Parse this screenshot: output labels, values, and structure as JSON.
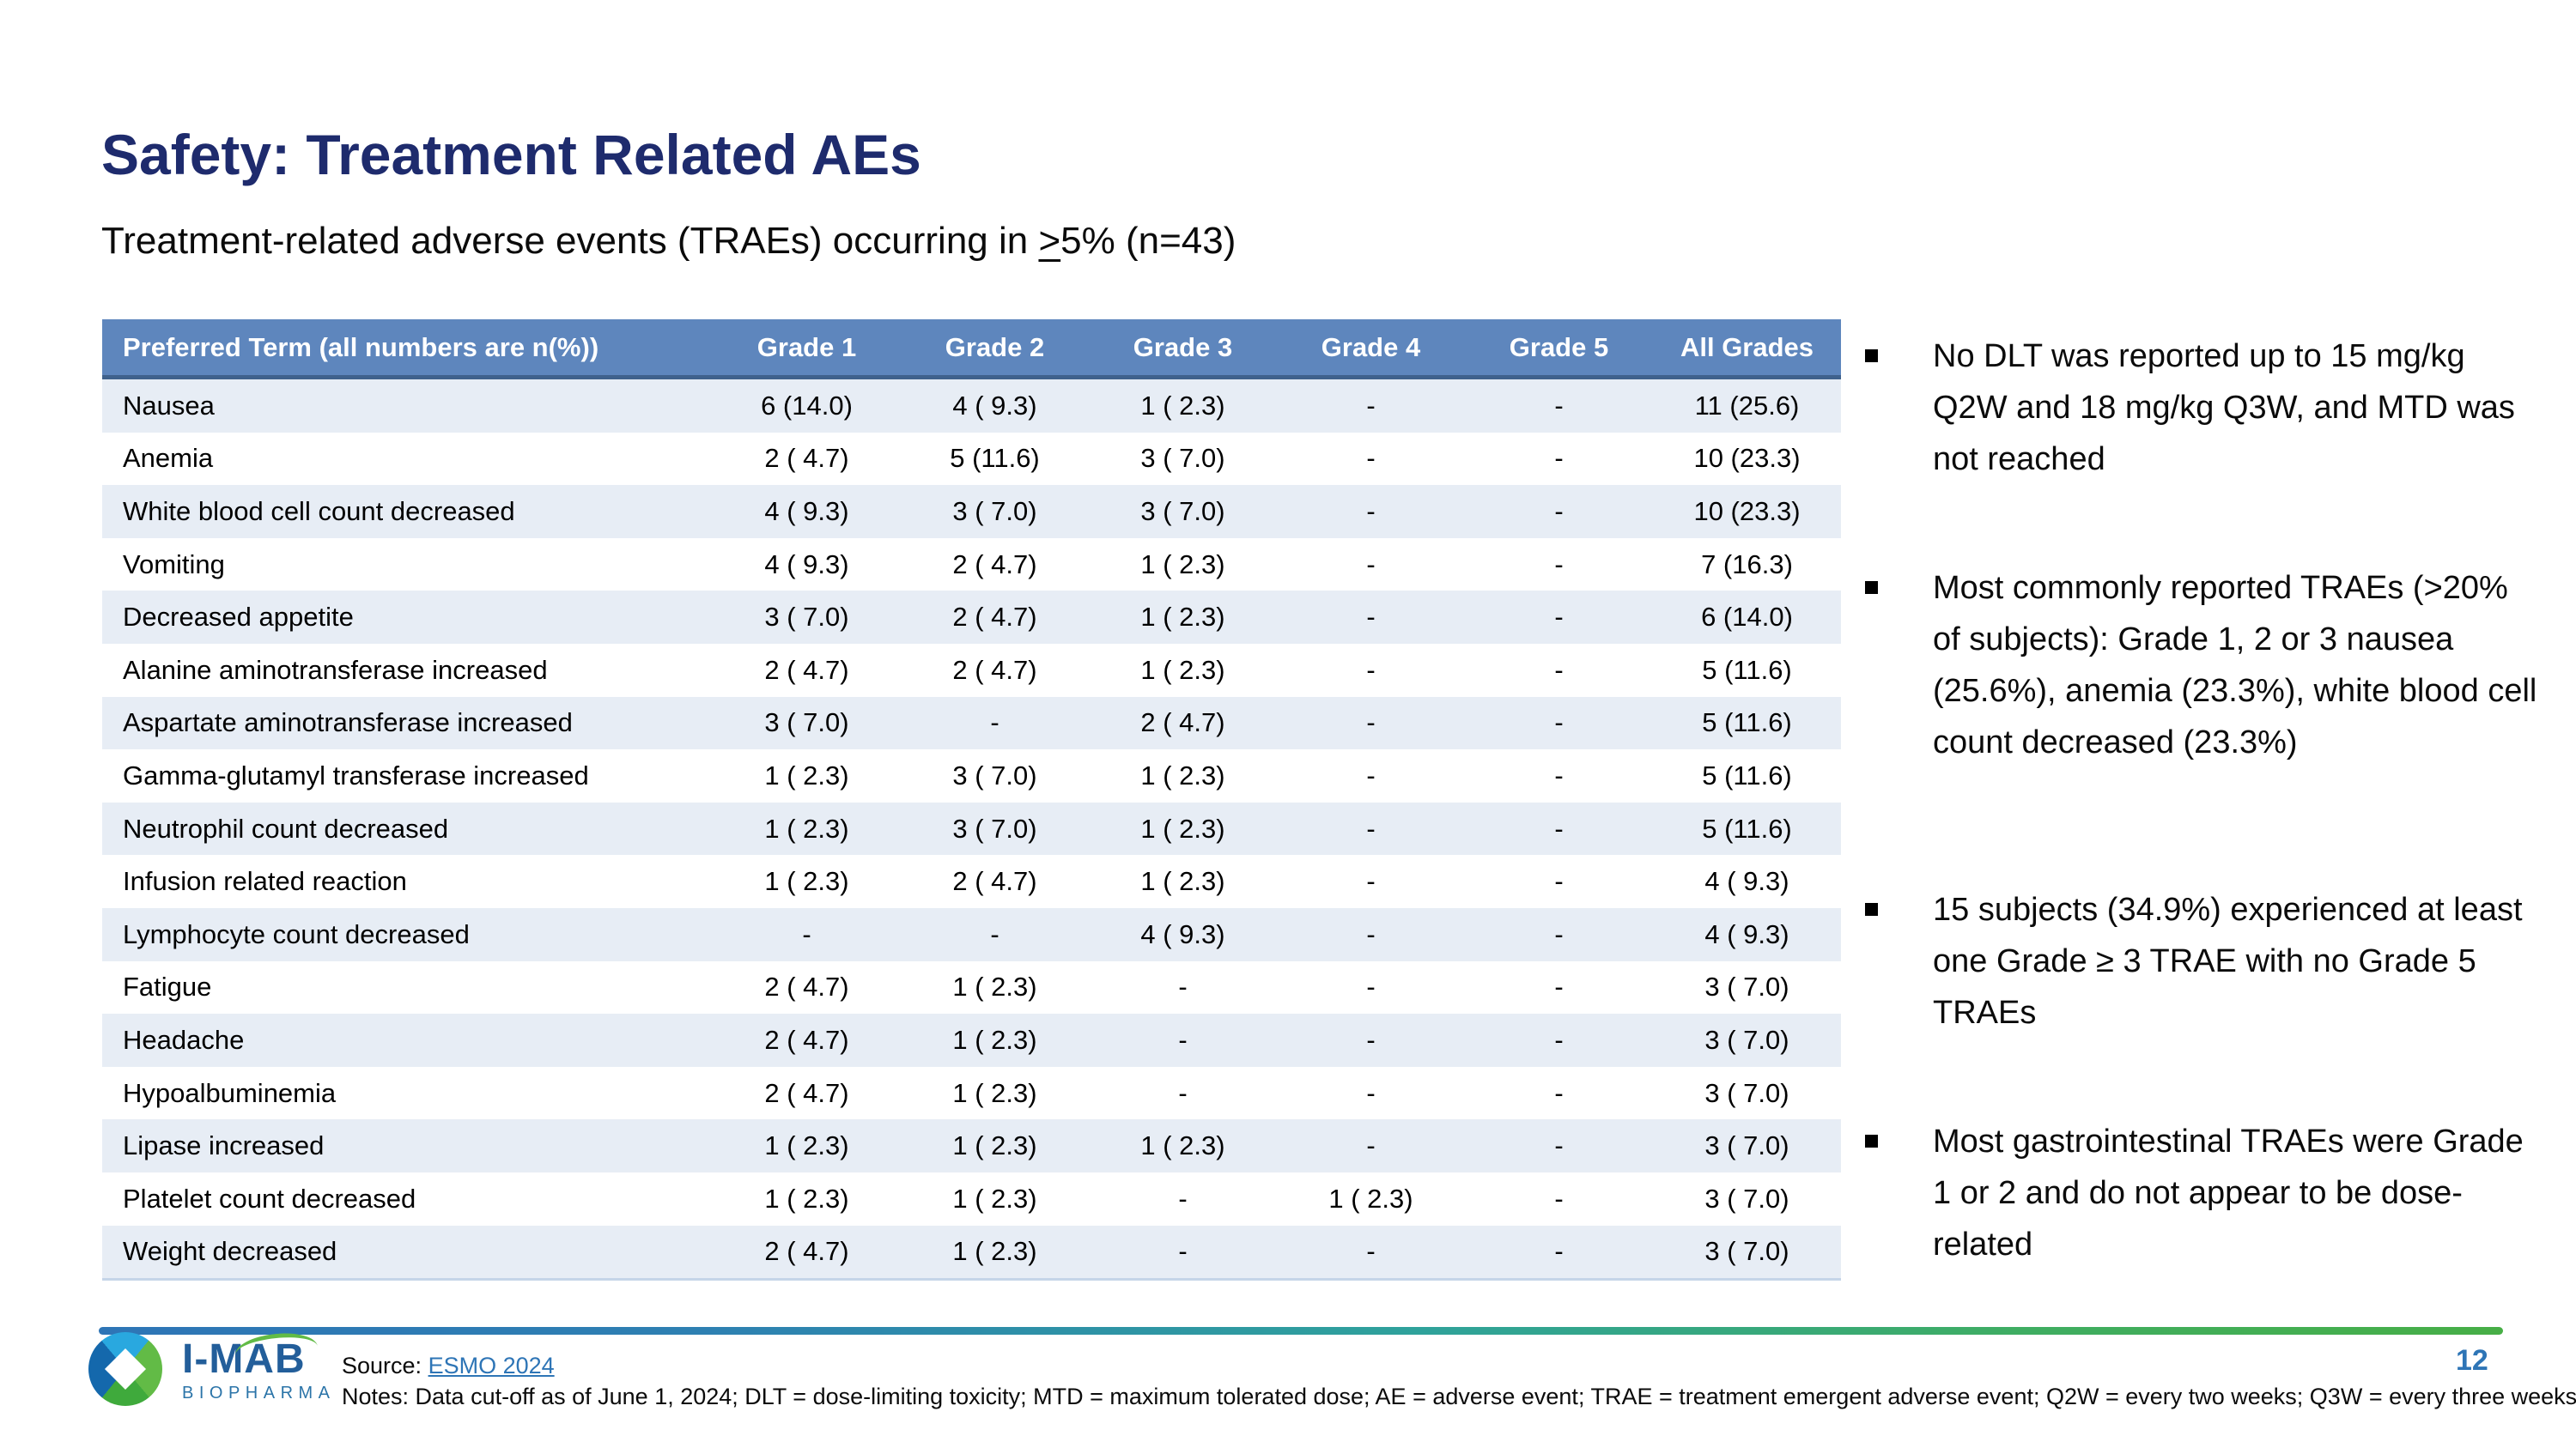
{
  "slide": {
    "title": "Safety: Treatment Related AEs",
    "subtitle_pre": "Treatment-related adverse events (TRAEs) occurring in ",
    "subtitle_geq": ">",
    "subtitle_post": "5% (n=43)"
  },
  "table": {
    "headers": [
      "Preferred Term (all numbers are n(%))",
      "Grade 1",
      "Grade 2",
      "Grade 3",
      "Grade 4",
      "Grade 5",
      "All Grades"
    ],
    "rows": [
      [
        "Nausea",
        "6 (14.0)",
        "4 ( 9.3)",
        "1 ( 2.3)",
        "-",
        "-",
        "11 (25.6)"
      ],
      [
        "Anemia",
        "2 ( 4.7)",
        "5 (11.6)",
        "3 ( 7.0)",
        "-",
        "-",
        "10 (23.3)"
      ],
      [
        "White blood cell count decreased",
        "4 ( 9.3)",
        "3 ( 7.0)",
        "3 ( 7.0)",
        "-",
        "-",
        "10 (23.3)"
      ],
      [
        "Vomiting",
        "4 ( 9.3)",
        "2 ( 4.7)",
        "1 ( 2.3)",
        "-",
        "-",
        "7 (16.3)"
      ],
      [
        "Decreased appetite",
        "3 ( 7.0)",
        "2 ( 4.7)",
        "1 ( 2.3)",
        "-",
        "-",
        "6 (14.0)"
      ],
      [
        "Alanine aminotransferase increased",
        "2 ( 4.7)",
        "2 ( 4.7)",
        "1 ( 2.3)",
        "-",
        "-",
        "5 (11.6)"
      ],
      [
        "Aspartate aminotransferase increased",
        "3 ( 7.0)",
        "-",
        "2 ( 4.7)",
        "-",
        "-",
        "5 (11.6)"
      ],
      [
        "Gamma-glutamyl transferase increased",
        "1 ( 2.3)",
        "3 ( 7.0)",
        "1 ( 2.3)",
        "-",
        "-",
        "5 (11.6)"
      ],
      [
        "Neutrophil count decreased",
        "1 ( 2.3)",
        "3 ( 7.0)",
        "1 ( 2.3)",
        "-",
        "-",
        "5 (11.6)"
      ],
      [
        "Infusion related reaction",
        "1 ( 2.3)",
        "2 ( 4.7)",
        "1 ( 2.3)",
        "-",
        "-",
        "4 ( 9.3)"
      ],
      [
        "Lymphocyte count decreased",
        "-",
        "-",
        "4 ( 9.3)",
        "-",
        "-",
        "4 ( 9.3)"
      ],
      [
        "Fatigue",
        "2 ( 4.7)",
        "1 ( 2.3)",
        "-",
        "-",
        "-",
        "3 ( 7.0)"
      ],
      [
        "Headache",
        "2 ( 4.7)",
        "1 ( 2.3)",
        "-",
        "-",
        "-",
        "3 ( 7.0)"
      ],
      [
        "Hypoalbuminemia",
        "2 ( 4.7)",
        "1 ( 2.3)",
        "-",
        "-",
        "-",
        "3 ( 7.0)"
      ],
      [
        "Lipase increased",
        "1 ( 2.3)",
        "1 ( 2.3)",
        "1 ( 2.3)",
        "-",
        "-",
        "3 ( 7.0)"
      ],
      [
        "Platelet count decreased",
        "1 ( 2.3)",
        "1 ( 2.3)",
        "-",
        "1 ( 2.3)",
        "-",
        "3 ( 7.0)"
      ],
      [
        "Weight decreased",
        "2 ( 4.7)",
        "1 ( 2.3)",
        "-",
        "-",
        "-",
        "3 ( 7.0)"
      ]
    ]
  },
  "bullets": [
    "No DLT was reported up to 15 mg/kg Q2W and 18 mg/kg Q3W, and MTD was not reached",
    "Most commonly reported TRAEs (>20% of subjects): Grade 1, 2 or 3 nausea (25.6%), anemia (23.3%), white blood cell count decreased (23.3%)",
    "15 subjects (34.9%) experienced at least one Grade ≥ 3 TRAE with no Grade 5 TRAEs",
    "Most gastrointestinal TRAEs were Grade 1 or 2 and do not appear to be dose-related"
  ],
  "footer": {
    "source_label": "Source: ",
    "source_link": "ESMO 2024",
    "notes": "Notes: Data cut-off as of June 1, 2024; DLT = dose-limiting toxicity; MTD = maximum tolerated dose; AE = adverse event; TRAE = treatment emergent adverse event; Q2W = every two weeks; Q3W = every three weeks",
    "page_number": "12",
    "logo_name": "I-MAB",
    "logo_sub": "BIOPHARMA"
  },
  "colors": {
    "title_navy": "#1e2b6d",
    "table_header_blue": "#5e86bd",
    "table_header_border": "#3f618c",
    "row_stripe_blue": "#e7edf5",
    "link_blue": "#2e75b6",
    "divider_green": "#47ae46",
    "logo_blue": "#235e9a",
    "logo_green": "#62bb46"
  }
}
